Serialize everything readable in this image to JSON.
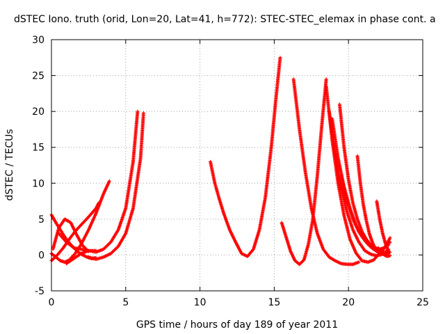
{
  "chart_data": {
    "type": "scatter",
    "title": "dSTEC Iono. truth (orid, Lon=20, Lat=41, h=772): STEC-STEC_elemax in phase cont. a",
    "xlabel": "GPS time / hours of day 189 of year 2011",
    "ylabel": "dSTEC  / TECUs",
    "xlim": [
      0,
      25
    ],
    "ylim": [
      -5,
      30
    ],
    "xticks": [
      0,
      5,
      10,
      15,
      20,
      25
    ],
    "yticks": [
      -5,
      0,
      5,
      10,
      15,
      20,
      25,
      30
    ],
    "grid": true,
    "marker": "+",
    "color": "#ff0000",
    "series": [
      {
        "x": [
          0.0,
          0.3,
          0.6,
          0.9,
          1.2,
          1.6,
          2.0,
          2.5,
          3.0,
          3.5,
          3.9
        ],
        "y": [
          0.2,
          -0.3,
          -0.8,
          -1.0,
          -0.7,
          0.2,
          1.5,
          3.5,
          5.8,
          8.5,
          10.3
        ]
      },
      {
        "x": [
          0.0,
          0.4,
          0.8,
          1.2,
          1.6,
          2.0,
          2.5,
          3.0,
          3.2
        ],
        "y": [
          -0.8,
          0.0,
          1.0,
          2.2,
          3.3,
          4.2,
          5.3,
          6.5,
          7.3
        ]
      },
      {
        "x": [
          0.0,
          0.3,
          0.6,
          0.9,
          1.2,
          1.5,
          1.8,
          2.1,
          2.4,
          2.7,
          3.0
        ],
        "y": [
          5.6,
          4.5,
          3.5,
          2.5,
          1.7,
          1.0,
          0.4,
          0.0,
          -0.3,
          -0.5,
          -0.4
        ]
      },
      {
        "x": [
          0.1,
          0.5,
          0.9,
          1.3,
          1.7,
          2.1,
          2.5
        ],
        "y": [
          0.8,
          3.8,
          5.0,
          4.5,
          2.8,
          1.3,
          0.5
        ]
      },
      {
        "x": [
          0.5,
          1.0,
          1.5,
          2.0,
          2.5,
          3.0
        ],
        "y": [
          3.0,
          1.8,
          1.0,
          0.8,
          0.6,
          0.6
        ]
      },
      {
        "x": [
          1.0,
          1.5,
          2.0,
          2.5,
          3.0,
          3.5,
          4.0,
          4.5,
          5.0,
          5.5,
          5.8
        ],
        "y": [
          -1.2,
          -0.5,
          0.2,
          0.6,
          0.4,
          0.8,
          1.8,
          3.5,
          6.5,
          13.0,
          20.0
        ]
      },
      {
        "x": [
          2.5,
          3.0,
          3.5,
          4.0,
          4.5,
          5.0,
          5.5,
          6.0,
          6.2
        ],
        "y": [
          -0.3,
          -0.6,
          -0.3,
          0.2,
          1.2,
          3.0,
          6.5,
          13.5,
          19.8
        ]
      },
      {
        "x": [
          10.7,
          11.0,
          11.3,
          11.6,
          12.0,
          12.4,
          12.8,
          13.2,
          13.6,
          14.0,
          14.4,
          14.8,
          15.1,
          15.4
        ],
        "y": [
          13.0,
          10.0,
          7.8,
          5.8,
          3.5,
          1.8,
          0.2,
          -0.2,
          0.8,
          3.5,
          8.0,
          15.0,
          21.5,
          27.5
        ]
      },
      {
        "x": [
          15.5,
          15.8,
          16.1,
          16.4,
          16.7,
          17.0,
          17.3,
          17.6,
          17.9,
          18.2,
          18.5
        ],
        "y": [
          4.5,
          2.5,
          0.5,
          -0.8,
          -1.3,
          -0.7,
          1.5,
          5.0,
          11.0,
          18.0,
          24.5
        ]
      },
      {
        "x": [
          16.3,
          16.7,
          17.1,
          17.5,
          17.9,
          18.3,
          18.7,
          19.1,
          19.5,
          19.9,
          20.3,
          20.7
        ],
        "y": [
          24.5,
          17.5,
          11.5,
          6.5,
          3.0,
          0.8,
          -0.3,
          -0.8,
          -1.2,
          -1.3,
          -1.3,
          -1.0
        ]
      },
      {
        "x": [
          18.5,
          18.9,
          19.3,
          19.7,
          20.1,
          20.5,
          20.9,
          21.3,
          21.7,
          22.1,
          22.5,
          22.8
        ],
        "y": [
          23.5,
          16.0,
          10.0,
          5.5,
          2.2,
          0.3,
          -0.8,
          -1.0,
          -0.7,
          0.3,
          1.2,
          1.8
        ]
      },
      {
        "x": [
          18.7,
          19.1,
          19.5,
          19.9,
          20.3,
          20.7,
          21.1,
          21.5,
          21.9,
          22.3,
          22.7
        ],
        "y": [
          20.0,
          14.0,
          9.5,
          6.0,
          3.5,
          1.8,
          0.6,
          0.1,
          -0.1,
          0.1,
          0.8
        ]
      },
      {
        "x": [
          18.9,
          19.3,
          19.7,
          20.1,
          20.5,
          20.9,
          21.3,
          21.7,
          22.1,
          22.5,
          22.8
        ],
        "y": [
          19.0,
          13.5,
          9.5,
          6.5,
          4.2,
          2.6,
          1.5,
          0.8,
          0.4,
          0.3,
          0.4
        ]
      },
      {
        "x": [
          19.4,
          19.7,
          20.0,
          20.3,
          20.6,
          20.9,
          21.2,
          21.5,
          21.8,
          22.1,
          22.4,
          22.7
        ],
        "y": [
          21.0,
          15.0,
          10.5,
          7.2,
          5.0,
          3.3,
          2.2,
          1.4,
          1.0,
          0.8,
          1.0,
          1.4
        ]
      },
      {
        "x": [
          19.5,
          19.9,
          20.3,
          20.7,
          21.1,
          21.5,
          21.9,
          22.3,
          22.7
        ],
        "y": [
          11.0,
          7.5,
          5.0,
          3.2,
          2.0,
          1.1,
          0.5,
          0.2,
          0.2
        ]
      },
      {
        "x": [
          20.6,
          20.8,
          21.0,
          21.2,
          21.4,
          21.6,
          21.8,
          22.0,
          22.2,
          22.4,
          22.6,
          22.8
        ],
        "y": [
          13.8,
          10.0,
          7.0,
          4.8,
          3.0,
          1.8,
          0.9,
          0.4,
          0.4,
          0.9,
          1.6,
          2.4
        ]
      },
      {
        "x": [
          21.9,
          22.1,
          22.3,
          22.5,
          22.7
        ],
        "y": [
          7.5,
          5.0,
          3.0,
          1.5,
          0.5
        ]
      },
      {
        "x": [
          22.0,
          22.2,
          22.4,
          22.6,
          22.8
        ],
        "y": [
          1.0,
          0.4,
          0.0,
          -0.2,
          -0.1
        ]
      }
    ]
  }
}
